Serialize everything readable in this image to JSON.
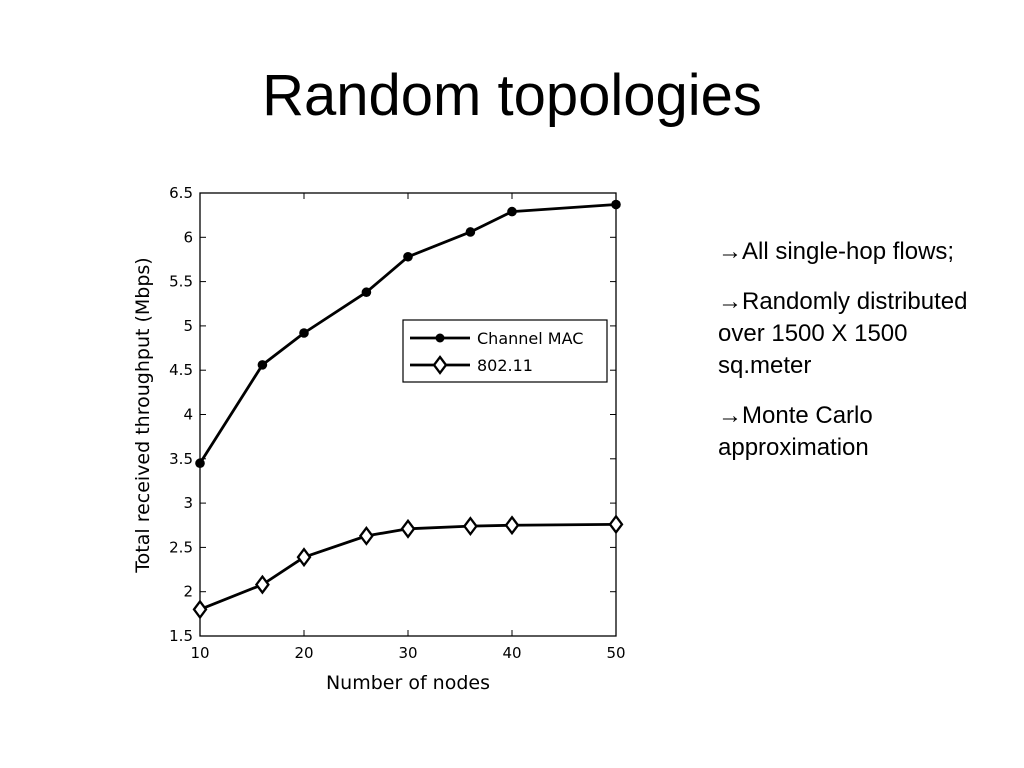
{
  "slide": {
    "title": "Random topologies",
    "bullets": [
      {
        "arrow": "→",
        "text": "All single-hop flows;"
      },
      {
        "arrow": "→",
        "text": "Randomly distributed over 1500 X 1500 sq.meter"
      },
      {
        "arrow": "→",
        "text": "Monte Carlo approximation"
      }
    ]
  },
  "chart_data": {
    "type": "line",
    "xlabel": "Number of nodes",
    "ylabel": "Total received throughput (Mbps)",
    "xlim": [
      10,
      50
    ],
    "ylim": [
      1.5,
      6.5
    ],
    "xticks": [
      10,
      20,
      30,
      40,
      50
    ],
    "yticks": [
      1.5,
      2,
      2.5,
      3,
      3.5,
      4,
      4.5,
      5,
      5.5,
      6,
      6.5
    ],
    "grid": false,
    "legend_position": "center-right",
    "series": [
      {
        "name": "Channel MAC",
        "marker": "circle",
        "color": "#000000",
        "x": [
          10,
          16,
          20,
          26,
          30,
          36,
          40,
          50
        ],
        "y": [
          3.45,
          4.56,
          4.92,
          5.38,
          5.78,
          6.06,
          6.29,
          6.37
        ]
      },
      {
        "name": "802.11",
        "marker": "diamond",
        "color": "#000000",
        "x": [
          10,
          16,
          20,
          26,
          30,
          36,
          40,
          50
        ],
        "y": [
          1.8,
          2.08,
          2.39,
          2.63,
          2.71,
          2.74,
          2.75,
          2.76
        ]
      }
    ]
  }
}
